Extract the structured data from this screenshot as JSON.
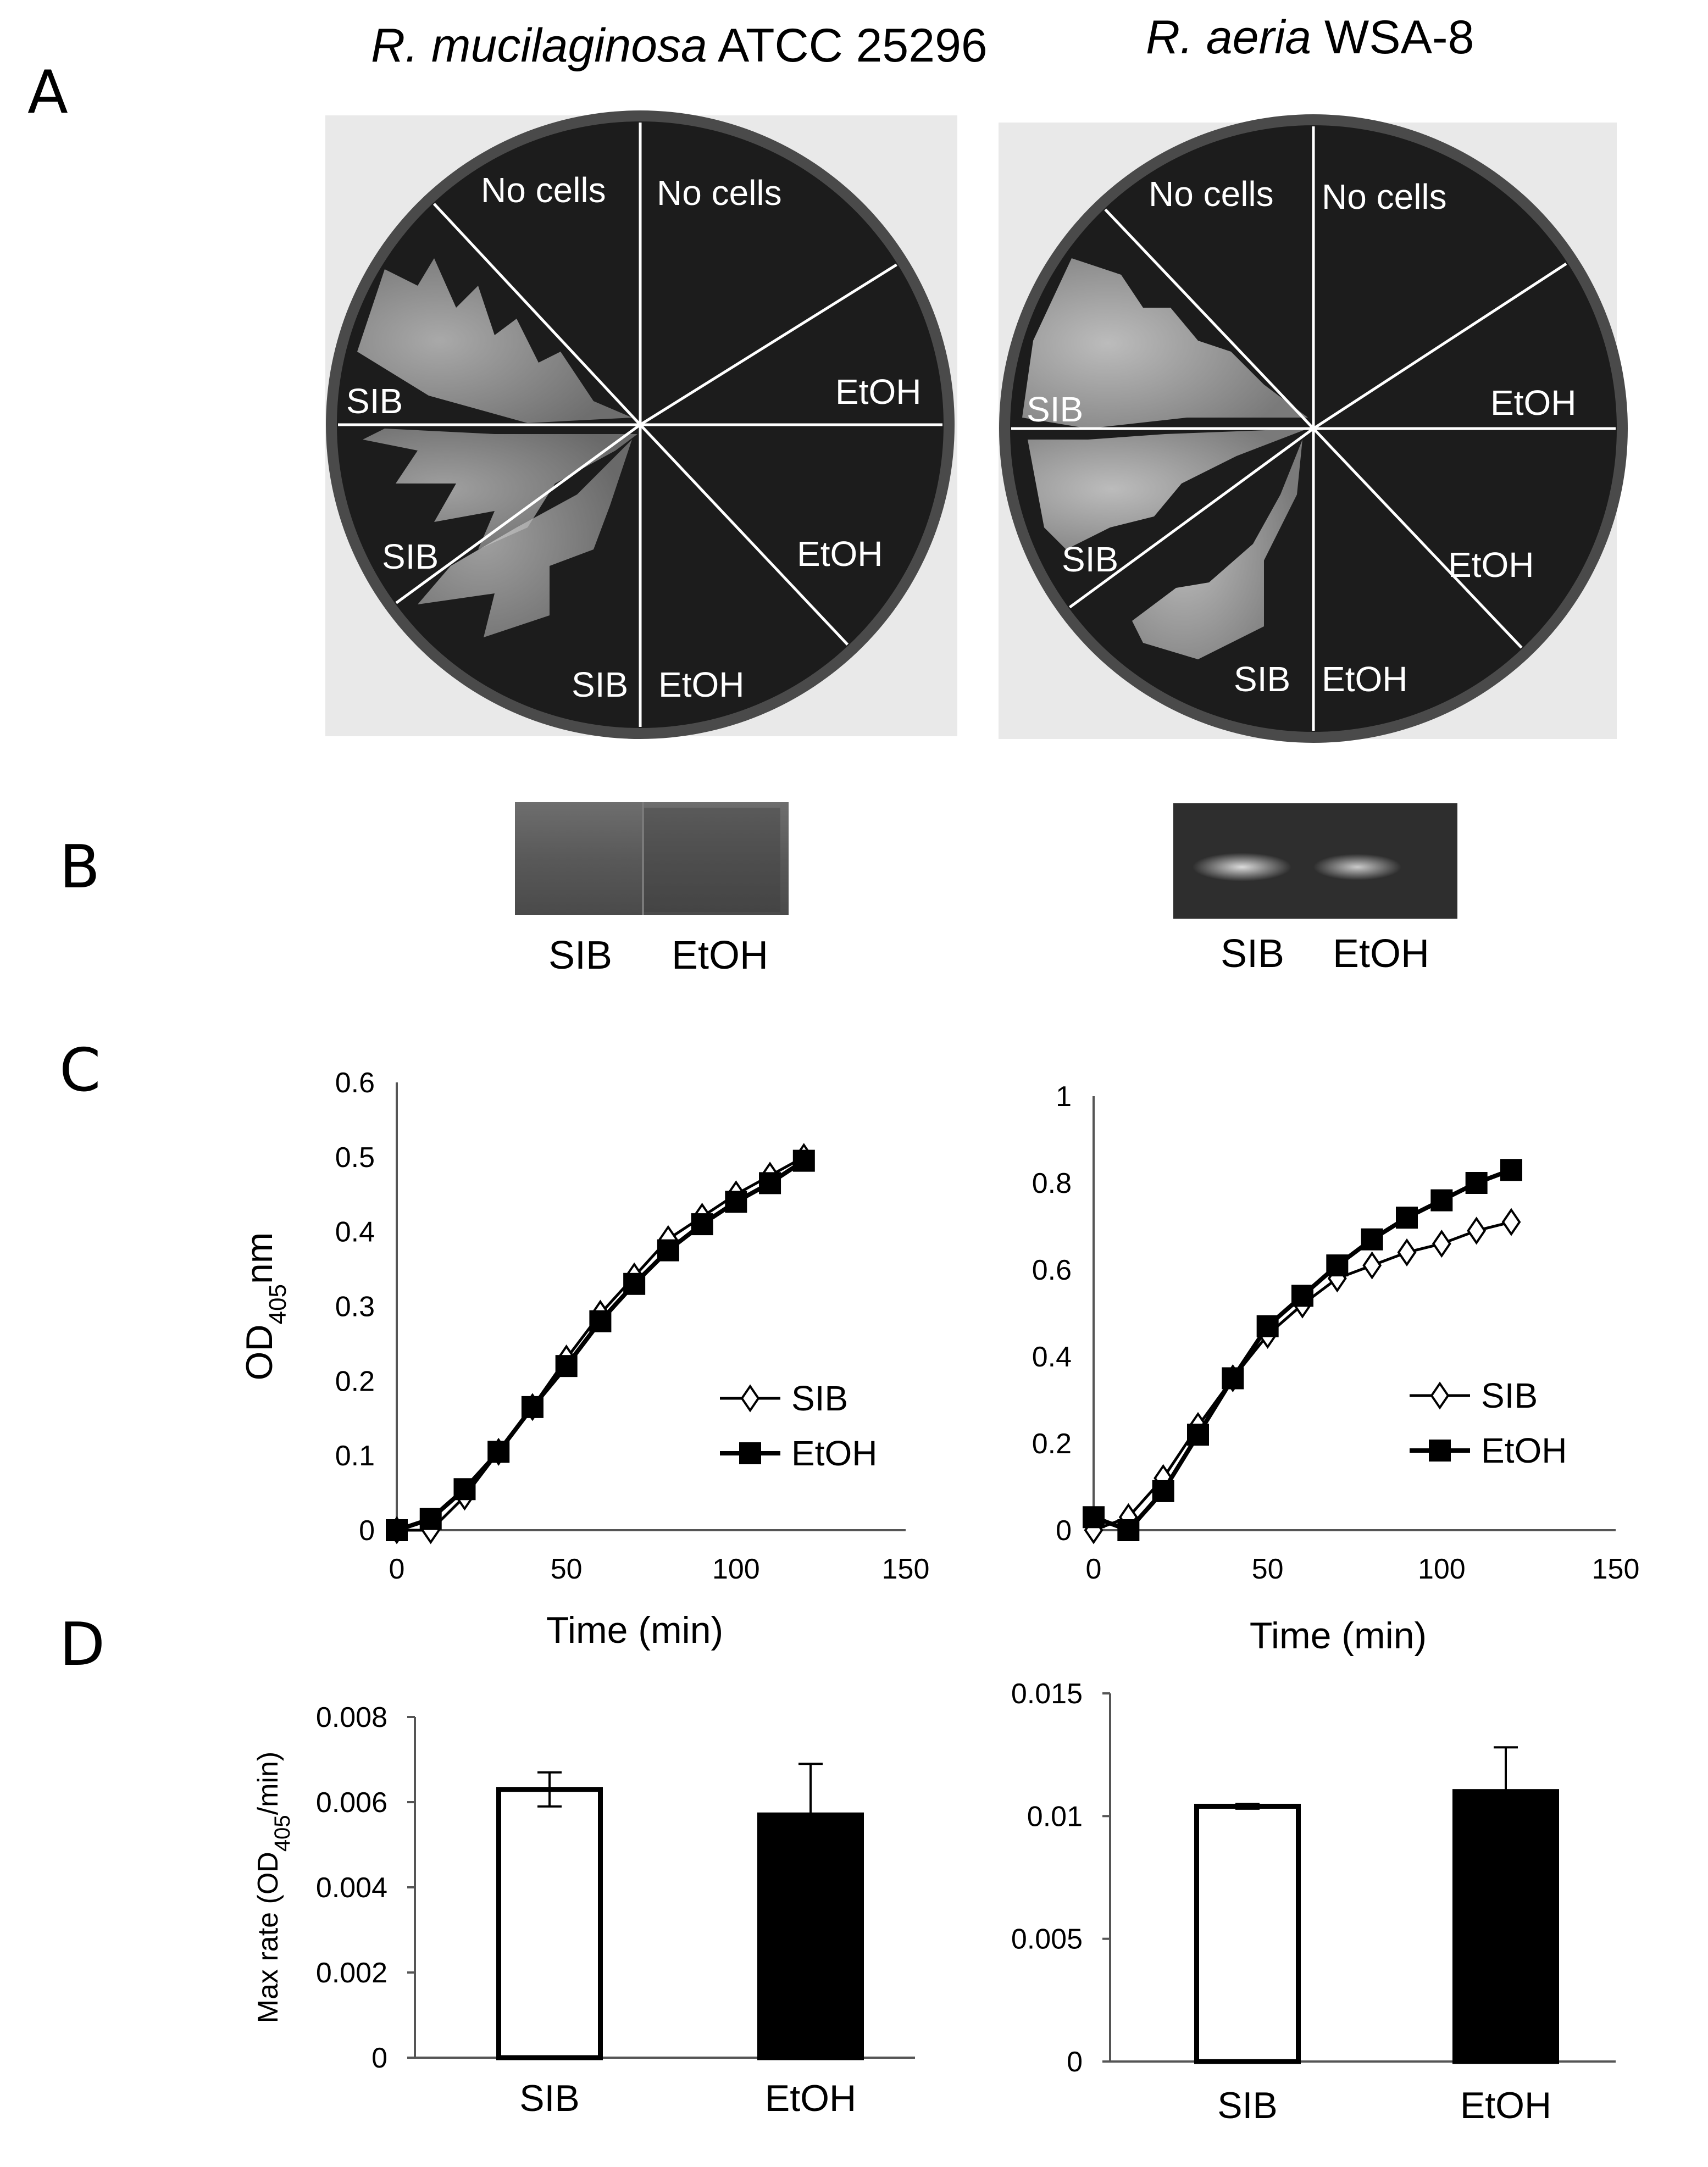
{
  "panels": {
    "a": "A",
    "b": "B",
    "c": "C",
    "d": "D"
  },
  "species": [
    {
      "italic": "R. mucilaginosa",
      "strain": " ATCC 25296"
    },
    {
      "italic": "R. aeria",
      "strain": " WSA-8"
    }
  ],
  "plates": [
    {
      "labels": [
        "No cells",
        "No cells",
        "EtOH",
        "EtOH",
        "SIB",
        "EtOH",
        "SIB",
        "SIB"
      ]
    },
    {
      "labels": [
        "No cells",
        "No cells",
        "EtOH",
        "EtOH",
        "SIB",
        "EtOH",
        "SIB",
        "SIB"
      ]
    }
  ],
  "gels": [
    {
      "lanes": [
        "SIB",
        "EtOH"
      ],
      "band_intensity": [
        0.15,
        0.15
      ]
    },
    {
      "lanes": [
        "SIB",
        "EtOH"
      ],
      "band_intensity": [
        0.8,
        0.75
      ]
    }
  ],
  "colors": {
    "sib": "#ffffff",
    "etoh": "#000000",
    "axis": "#000000",
    "plate_bg": "#1c1c1c"
  },
  "chart_data": [
    {
      "type": "line",
      "id": "C-left",
      "xlabel": "Time (min)",
      "ylabel_main": "OD",
      "ylabel_sub": "405",
      "ylabel_tail": "nm",
      "xlim": [
        0,
        150
      ],
      "ylim": [
        0,
        0.6
      ],
      "xticks": [
        0,
        50,
        100,
        150
      ],
      "yticks": [
        "0",
        "0.1",
        "0.2",
        "0.3",
        "0.4",
        "0.5",
        "0.6"
      ],
      "legend": [
        "SIB",
        "EtOH"
      ],
      "series": [
        {
          "name": "SIB",
          "marker": "diamond-open",
          "x": [
            0,
            10,
            20,
            30,
            40,
            50,
            60,
            70,
            80,
            90,
            100,
            110,
            120
          ],
          "y": [
            0,
            0,
            0.045,
            0.105,
            0.165,
            0.23,
            0.29,
            0.34,
            0.39,
            0.42,
            0.45,
            0.475,
            0.5
          ]
        },
        {
          "name": "EtOH",
          "marker": "square-filled",
          "x": [
            0,
            10,
            20,
            30,
            40,
            50,
            60,
            70,
            80,
            90,
            100,
            110,
            120
          ],
          "y": [
            0,
            0.015,
            0.055,
            0.105,
            0.165,
            0.22,
            0.28,
            0.33,
            0.375,
            0.41,
            0.44,
            0.465,
            0.495
          ]
        }
      ]
    },
    {
      "type": "line",
      "id": "C-right",
      "xlabel": "Time (min)",
      "xlim": [
        0,
        150
      ],
      "ylim": [
        0,
        1
      ],
      "xticks": [
        0,
        50,
        100,
        150
      ],
      "yticks": [
        "0",
        "0.2",
        "0.4",
        "0.6",
        "0.8",
        "1"
      ],
      "legend": [
        "SIB",
        "EtOH"
      ],
      "series": [
        {
          "name": "SIB",
          "marker": "diamond-open",
          "x": [
            0,
            10,
            20,
            30,
            40,
            50,
            60,
            70,
            80,
            90,
            100,
            110,
            120
          ],
          "y": [
            0,
            0.03,
            0.12,
            0.24,
            0.35,
            0.45,
            0.52,
            0.58,
            0.61,
            0.64,
            0.66,
            0.69,
            0.71
          ]
        },
        {
          "name": "EtOH",
          "marker": "square-filled",
          "x": [
            0,
            10,
            20,
            30,
            40,
            50,
            60,
            70,
            80,
            90,
            100,
            110,
            120
          ],
          "y": [
            0.03,
            0.0,
            0.09,
            0.22,
            0.35,
            0.47,
            0.54,
            0.61,
            0.67,
            0.72,
            0.76,
            0.8,
            0.83
          ]
        }
      ]
    },
    {
      "type": "bar",
      "id": "D-left",
      "ylabel_main": "Max rate (OD",
      "ylabel_sub": "405",
      "ylabel_tail": "/min)",
      "categories": [
        "SIB",
        "EtOH"
      ],
      "values": [
        0.0063,
        0.0057
      ],
      "errors": [
        0.0004,
        0.0012
      ],
      "ylim": [
        0,
        0.008
      ],
      "yticks": [
        "0",
        "0.002",
        "0.004",
        "0.006",
        "0.008"
      ]
    },
    {
      "type": "bar",
      "id": "D-right",
      "categories": [
        "SIB",
        "EtOH"
      ],
      "values": [
        0.0104,
        0.011
      ],
      "errors": [
        0.0001,
        0.0018
      ],
      "ylim": [
        0,
        0.015
      ],
      "yticks": [
        "0",
        "0.005",
        "0.01",
        "0.015"
      ]
    }
  ]
}
